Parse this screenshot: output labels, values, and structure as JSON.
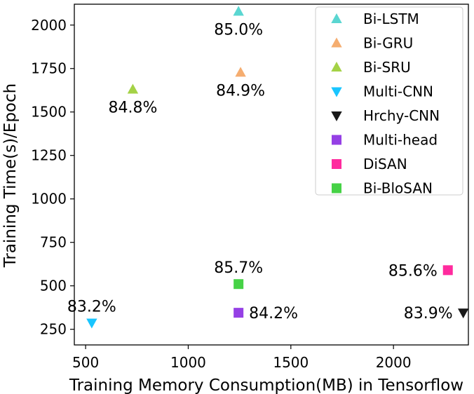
{
  "chart_data": {
    "type": "scatter",
    "title": "",
    "xlabel": "Training Memory Consumption(MB) in Tensorflow",
    "ylabel": "Training Time(s)/Epoch",
    "xlim": [
      445,
      2365
    ],
    "ylim": [
      160,
      2120
    ],
    "xticks": [
      500,
      1000,
      1500,
      2000
    ],
    "yticks": [
      250,
      500,
      750,
      1000,
      1250,
      1500,
      1750,
      2000
    ],
    "grid": false,
    "legend_position": "top-right",
    "series": [
      {
        "name": "Bi-LSTM",
        "marker": "triangle-up",
        "color": "#48D1CC",
        "x": 1245,
        "y": 2078,
        "label": "85.0%",
        "label_pos": "below"
      },
      {
        "name": "Bi-GRU",
        "marker": "triangle-up",
        "color": "#F4A460",
        "x": 1255,
        "y": 1727,
        "label": "84.9%",
        "label_pos": "below"
      },
      {
        "name": "Bi-SRU",
        "marker": "triangle-up",
        "color": "#9ACD32",
        "x": 730,
        "y": 1630,
        "label": "84.8%",
        "label_pos": "below"
      },
      {
        "name": "Multi-CNN",
        "marker": "triangle-down",
        "color": "#00BFFF",
        "x": 530,
        "y": 287,
        "label": "83.2%",
        "label_pos": "above"
      },
      {
        "name": "Hrchy-CNN",
        "marker": "triangle-down",
        "color": "#000000",
        "x": 2340,
        "y": 345,
        "label": "83.9%",
        "label_pos": "left"
      },
      {
        "name": "Multi-head",
        "marker": "square",
        "color": "#8A2BE2",
        "x": 1245,
        "y": 345,
        "label": "84.2%",
        "label_pos": "right"
      },
      {
        "name": "DiSAN",
        "marker": "square",
        "color": "#FF1493",
        "x": 2265,
        "y": 590,
        "label": "85.6%",
        "label_pos": "left"
      },
      {
        "name": "Bi-BloSAN",
        "marker": "square",
        "color": "#32CD32",
        "x": 1245,
        "y": 510,
        "label": "85.7%",
        "label_pos": "above"
      }
    ]
  }
}
